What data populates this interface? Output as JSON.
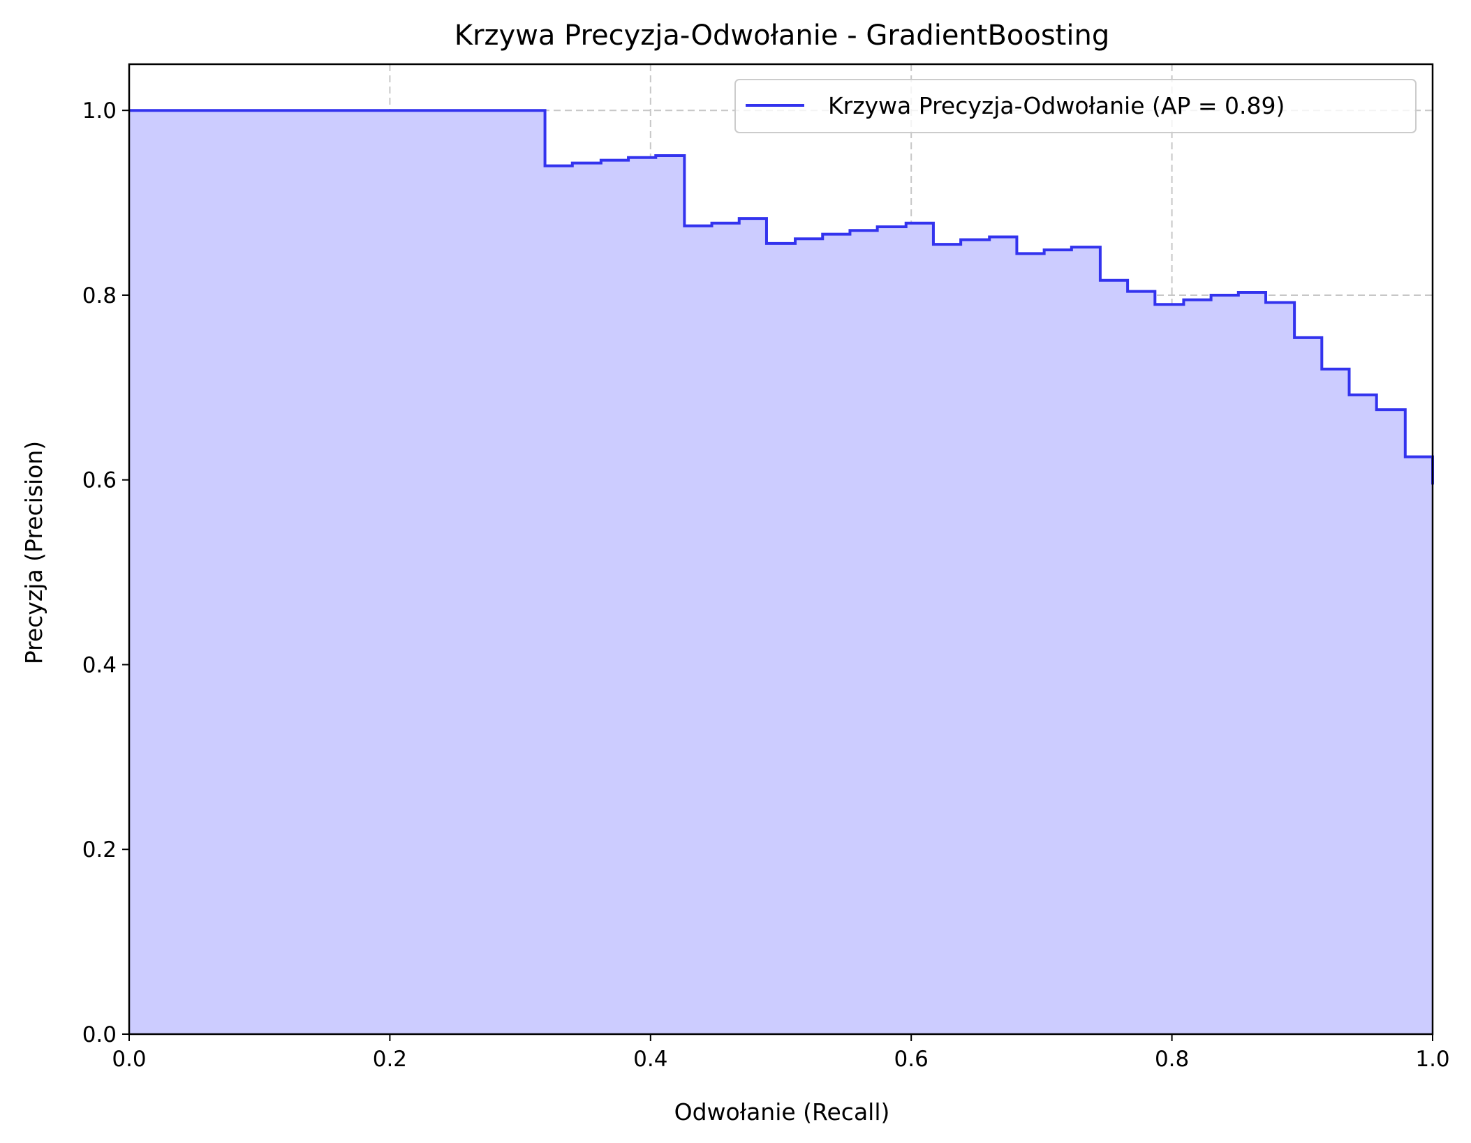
{
  "chart_data": {
    "type": "area",
    "title": "Krzywa Precyzja-Odwołanie - GradientBoosting",
    "xlabel": "Odwołanie (Recall)",
    "ylabel": "Precyzja (Precision)",
    "xlim": [
      0.0,
      1.0
    ],
    "ylim": [
      0.0,
      1.05
    ],
    "xticks": [
      "0.0",
      "0.2",
      "0.4",
      "0.6",
      "0.8",
      "1.0"
    ],
    "yticks": [
      "0.0",
      "0.2",
      "0.4",
      "0.6",
      "0.8",
      "1.0"
    ],
    "grid": true,
    "legend_position": "top-right",
    "series": [
      {
        "name": "Krzywa Precyzja-Odwołanie (AP = 0.89)",
        "color": "#3333ee",
        "fill_color": "#ccccff",
        "step": "post",
        "x": [
          0.0,
          0.319,
          0.34,
          0.362,
          0.383,
          0.404,
          0.426,
          0.447,
          0.468,
          0.489,
          0.511,
          0.532,
          0.553,
          0.574,
          0.596,
          0.617,
          0.638,
          0.66,
          0.681,
          0.702,
          0.723,
          0.745,
          0.766,
          0.787,
          0.809,
          0.83,
          0.851,
          0.872,
          0.894,
          0.915,
          0.936,
          0.957,
          0.979,
          1.0
        ],
        "y": [
          1.0,
          0.94,
          0.943,
          0.946,
          0.949,
          0.951,
          0.875,
          0.878,
          0.883,
          0.856,
          0.861,
          0.866,
          0.87,
          0.874,
          0.878,
          0.855,
          0.86,
          0.863,
          0.845,
          0.849,
          0.852,
          0.816,
          0.804,
          0.79,
          0.795,
          0.8,
          0.803,
          0.792,
          0.754,
          0.72,
          0.692,
          0.676,
          0.625,
          0.595
        ]
      }
    ]
  }
}
